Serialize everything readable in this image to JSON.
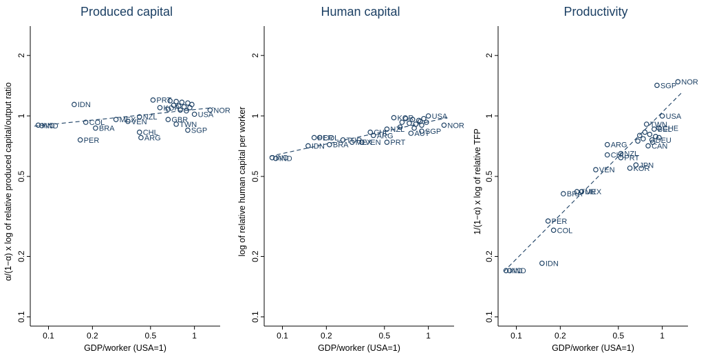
{
  "chart_data": [
    {
      "type": "scatter",
      "title": "Produced capital",
      "xlabel": "GDP/worker (USA=1)",
      "ylabel": "α/(1−α) x log of relative produced capital/output ratio",
      "xscale": "log",
      "yscale": "log",
      "xlim": [
        0.075,
        1.5
      ],
      "ylim": [
        0.09,
        2.8
      ],
      "xticks": [
        {
          "v": 0.1,
          "label": "0.1"
        },
        {
          "v": 0.2,
          "label": "0.2"
        },
        {
          "v": 0.5,
          "label": "0.5"
        },
        {
          "v": 1,
          "label": "1"
        }
      ],
      "yticks": [
        {
          "v": 0.1,
          "label": "0.1"
        },
        {
          "v": 0.2,
          "label": "0.2"
        },
        {
          "v": 0.5,
          "label": "0.5"
        },
        {
          "v": 1,
          "label": "1"
        },
        {
          "v": 2,
          "label": "2"
        }
      ],
      "grid": false,
      "fit_line": {
        "x": [
          0.08,
          1.35
        ],
        "y": [
          0.89,
          1.1
        ]
      },
      "points": [
        {
          "label": "IND",
          "x": 0.085,
          "y": 0.9
        },
        {
          "label": "IND",
          "x": 0.09,
          "y": 0.895
        },
        {
          "label": "IDN",
          "x": 0.15,
          "y": 1.14
        },
        {
          "label": "COL",
          "x": 0.18,
          "y": 0.93
        },
        {
          "label": "BRA",
          "x": 0.21,
          "y": 0.87
        },
        {
          "label": "PER",
          "x": 0.165,
          "y": 0.76
        },
        {
          "label": "MEX",
          "x": 0.29,
          "y": 0.96
        },
        {
          "label": "VEN",
          "x": 0.35,
          "y": 0.94
        },
        {
          "label": "NZL",
          "x": 0.42,
          "y": 0.99
        },
        {
          "label": "CHL",
          "x": 0.42,
          "y": 0.83
        },
        {
          "label": "ARG",
          "x": 0.43,
          "y": 0.78
        },
        {
          "label": "PRT",
          "x": 0.52,
          "y": 1.2
        },
        {
          "label": "KOR",
          "x": 0.58,
          "y": 1.1
        },
        {
          "label": "GBR",
          "x": 0.66,
          "y": 0.96
        },
        {
          "label": "TWN",
          "x": 0.75,
          "y": 0.91
        },
        {
          "label": "SGP",
          "x": 0.9,
          "y": 0.85
        },
        {
          "label": "USA",
          "x": 1.0,
          "y": 1.02
        },
        {
          "label": "NOR",
          "x": 1.28,
          "y": 1.07
        },
        {
          "label": "",
          "x": 0.68,
          "y": 1.19
        },
        {
          "label": "",
          "x": 0.75,
          "y": 1.18
        },
        {
          "label": "",
          "x": 0.82,
          "y": 1.17
        },
        {
          "label": "",
          "x": 0.9,
          "y": 1.16
        },
        {
          "label": "",
          "x": 0.72,
          "y": 1.13
        },
        {
          "label": "",
          "x": 0.78,
          "y": 1.12
        },
        {
          "label": "",
          "x": 0.85,
          "y": 1.11
        },
        {
          "label": "",
          "x": 0.93,
          "y": 1.1
        },
        {
          "label": "",
          "x": 0.66,
          "y": 1.08
        },
        {
          "label": "",
          "x": 0.8,
          "y": 1.07
        },
        {
          "label": "",
          "x": 0.88,
          "y": 1.06
        },
        {
          "label": "",
          "x": 0.96,
          "y": 1.14
        }
      ]
    },
    {
      "type": "scatter",
      "title": "Human capital",
      "xlabel": "GDP/worker (USA=1)",
      "ylabel": "log of relative human capital per worker",
      "xscale": "log",
      "yscale": "log",
      "xlim": [
        0.075,
        1.5
      ],
      "ylim": [
        0.09,
        2.8
      ],
      "xticks": [
        {
          "v": 0.1,
          "label": "0.1"
        },
        {
          "v": 0.2,
          "label": "0.2"
        },
        {
          "v": 0.5,
          "label": "0.5"
        },
        {
          "v": 1,
          "label": "1"
        }
      ],
      "yticks": [
        {
          "v": 0.1,
          "label": "0.1"
        },
        {
          "v": 0.2,
          "label": "0.2"
        },
        {
          "v": 0.5,
          "label": "0.5"
        },
        {
          "v": 1,
          "label": "1"
        },
        {
          "v": 2,
          "label": "2"
        }
      ],
      "grid": false,
      "fit_line": {
        "x": [
          0.082,
          1.35
        ],
        "y": [
          0.63,
          0.98
        ]
      },
      "points": [
        {
          "label": "IND",
          "x": 0.085,
          "y": 0.62
        },
        {
          "label": "IND",
          "x": 0.09,
          "y": 0.615
        },
        {
          "label": "IDN",
          "x": 0.15,
          "y": 0.71
        },
        {
          "label": "PER",
          "x": 0.165,
          "y": 0.78
        },
        {
          "label": "COL",
          "x": 0.18,
          "y": 0.78
        },
        {
          "label": "BRA",
          "x": 0.21,
          "y": 0.72
        },
        {
          "label": "TUR",
          "x": 0.26,
          "y": 0.76
        },
        {
          "label": "MEX",
          "x": 0.3,
          "y": 0.74
        },
        {
          "label": "VEN",
          "x": 0.35,
          "y": 0.74
        },
        {
          "label": "ARG",
          "x": 0.42,
          "y": 0.8
        },
        {
          "label": "CHL",
          "x": 0.4,
          "y": 0.83
        },
        {
          "label": "PRT",
          "x": 0.52,
          "y": 0.74
        },
        {
          "label": "NZL",
          "x": 0.52,
          "y": 0.86
        },
        {
          "label": "KOR",
          "x": 0.58,
          "y": 0.98
        },
        {
          "label": "AUT",
          "x": 0.76,
          "y": 0.82
        },
        {
          "label": "SGP",
          "x": 0.9,
          "y": 0.84
        },
        {
          "label": "USA",
          "x": 1.0,
          "y": 1.0
        },
        {
          "label": "NOR",
          "x": 1.28,
          "y": 0.9
        },
        {
          "label": "",
          "x": 0.7,
          "y": 0.97
        },
        {
          "label": "",
          "x": 0.78,
          "y": 0.96
        },
        {
          "label": "",
          "x": 0.86,
          "y": 0.95
        },
        {
          "label": "",
          "x": 0.93,
          "y": 0.97
        },
        {
          "label": "",
          "x": 0.66,
          "y": 0.93
        },
        {
          "label": "",
          "x": 0.74,
          "y": 0.92
        },
        {
          "label": "",
          "x": 0.82,
          "y": 0.91
        },
        {
          "label": "",
          "x": 0.9,
          "y": 0.9
        },
        {
          "label": "",
          "x": 0.97,
          "y": 0.93
        },
        {
          "label": "",
          "x": 0.64,
          "y": 0.88
        },
        {
          "label": "",
          "x": 0.8,
          "y": 0.87
        },
        {
          "label": "",
          "x": 0.88,
          "y": 0.94
        }
      ]
    },
    {
      "type": "scatter",
      "title": "Productivity",
      "xlabel": "GDP/worker (USA=1)",
      "ylabel": "1/(1−α) x log of relative TFP",
      "xscale": "log",
      "yscale": "log",
      "xlim": [
        0.075,
        1.5
      ],
      "ylim": [
        0.09,
        2.8
      ],
      "xticks": [
        {
          "v": 0.1,
          "label": "0.1"
        },
        {
          "v": 0.2,
          "label": "0.2"
        },
        {
          "v": 0.5,
          "label": "0.5"
        },
        {
          "v": 1,
          "label": "1"
        }
      ],
      "yticks": [
        {
          "v": 0.1,
          "label": "0.1"
        },
        {
          "v": 0.2,
          "label": "0.2"
        },
        {
          "v": 0.5,
          "label": "0.5"
        },
        {
          "v": 1,
          "label": "1"
        },
        {
          "v": 2,
          "label": "2"
        }
      ],
      "grid": false,
      "fit_line": {
        "x": [
          0.082,
          1.35
        ],
        "y": [
          0.168,
          1.3
        ]
      },
      "points": [
        {
          "label": "IND",
          "x": 0.085,
          "y": 0.17
        },
        {
          "label": "IND",
          "x": 0.09,
          "y": 0.17
        },
        {
          "label": "IDN",
          "x": 0.15,
          "y": 0.185
        },
        {
          "label": "COL",
          "x": 0.18,
          "y": 0.27
        },
        {
          "label": "PER",
          "x": 0.165,
          "y": 0.3
        },
        {
          "label": "BRA",
          "x": 0.21,
          "y": 0.41
        },
        {
          "label": "TUR",
          "x": 0.26,
          "y": 0.42
        },
        {
          "label": "MEX",
          "x": 0.28,
          "y": 0.42
        },
        {
          "label": "VEN",
          "x": 0.35,
          "y": 0.54
        },
        {
          "label": "ARG",
          "x": 0.42,
          "y": 0.72
        },
        {
          "label": "CHL",
          "x": 0.42,
          "y": 0.64
        },
        {
          "label": "NZL",
          "x": 0.52,
          "y": 0.65
        },
        {
          "label": "PRT",
          "x": 0.52,
          "y": 0.62
        },
        {
          "label": "JPN",
          "x": 0.66,
          "y": 0.57
        },
        {
          "label": "KOR",
          "x": 0.6,
          "y": 0.55
        },
        {
          "label": "CAN",
          "x": 0.8,
          "y": 0.71
        },
        {
          "label": "TWN",
          "x": 0.78,
          "y": 0.91
        },
        {
          "label": "USA",
          "x": 1.0,
          "y": 1.0
        },
        {
          "label": "SGP",
          "x": 0.92,
          "y": 1.42
        },
        {
          "label": "NOR",
          "x": 1.28,
          "y": 1.48
        },
        {
          "label": "DEU",
          "x": 0.85,
          "y": 0.76
        },
        {
          "label": "BEL",
          "x": 0.88,
          "y": 0.86
        },
        {
          "label": "CHE",
          "x": 0.95,
          "y": 0.87
        },
        {
          "label": "",
          "x": 0.7,
          "y": 0.8
        },
        {
          "label": "",
          "x": 0.76,
          "y": 0.83
        },
        {
          "label": "",
          "x": 0.82,
          "y": 0.81
        },
        {
          "label": "",
          "x": 0.9,
          "y": 0.79
        },
        {
          "label": "",
          "x": 0.74,
          "y": 0.77
        },
        {
          "label": "",
          "x": 0.86,
          "y": 0.74
        },
        {
          "label": "",
          "x": 0.95,
          "y": 0.78
        },
        {
          "label": "",
          "x": 0.68,
          "y": 0.75
        }
      ]
    }
  ],
  "colors": {
    "marker": "#1b3f63",
    "label": "#1b3f63",
    "axis": "#000000",
    "title": "#1b3f63",
    "background": "#ffffff"
  }
}
